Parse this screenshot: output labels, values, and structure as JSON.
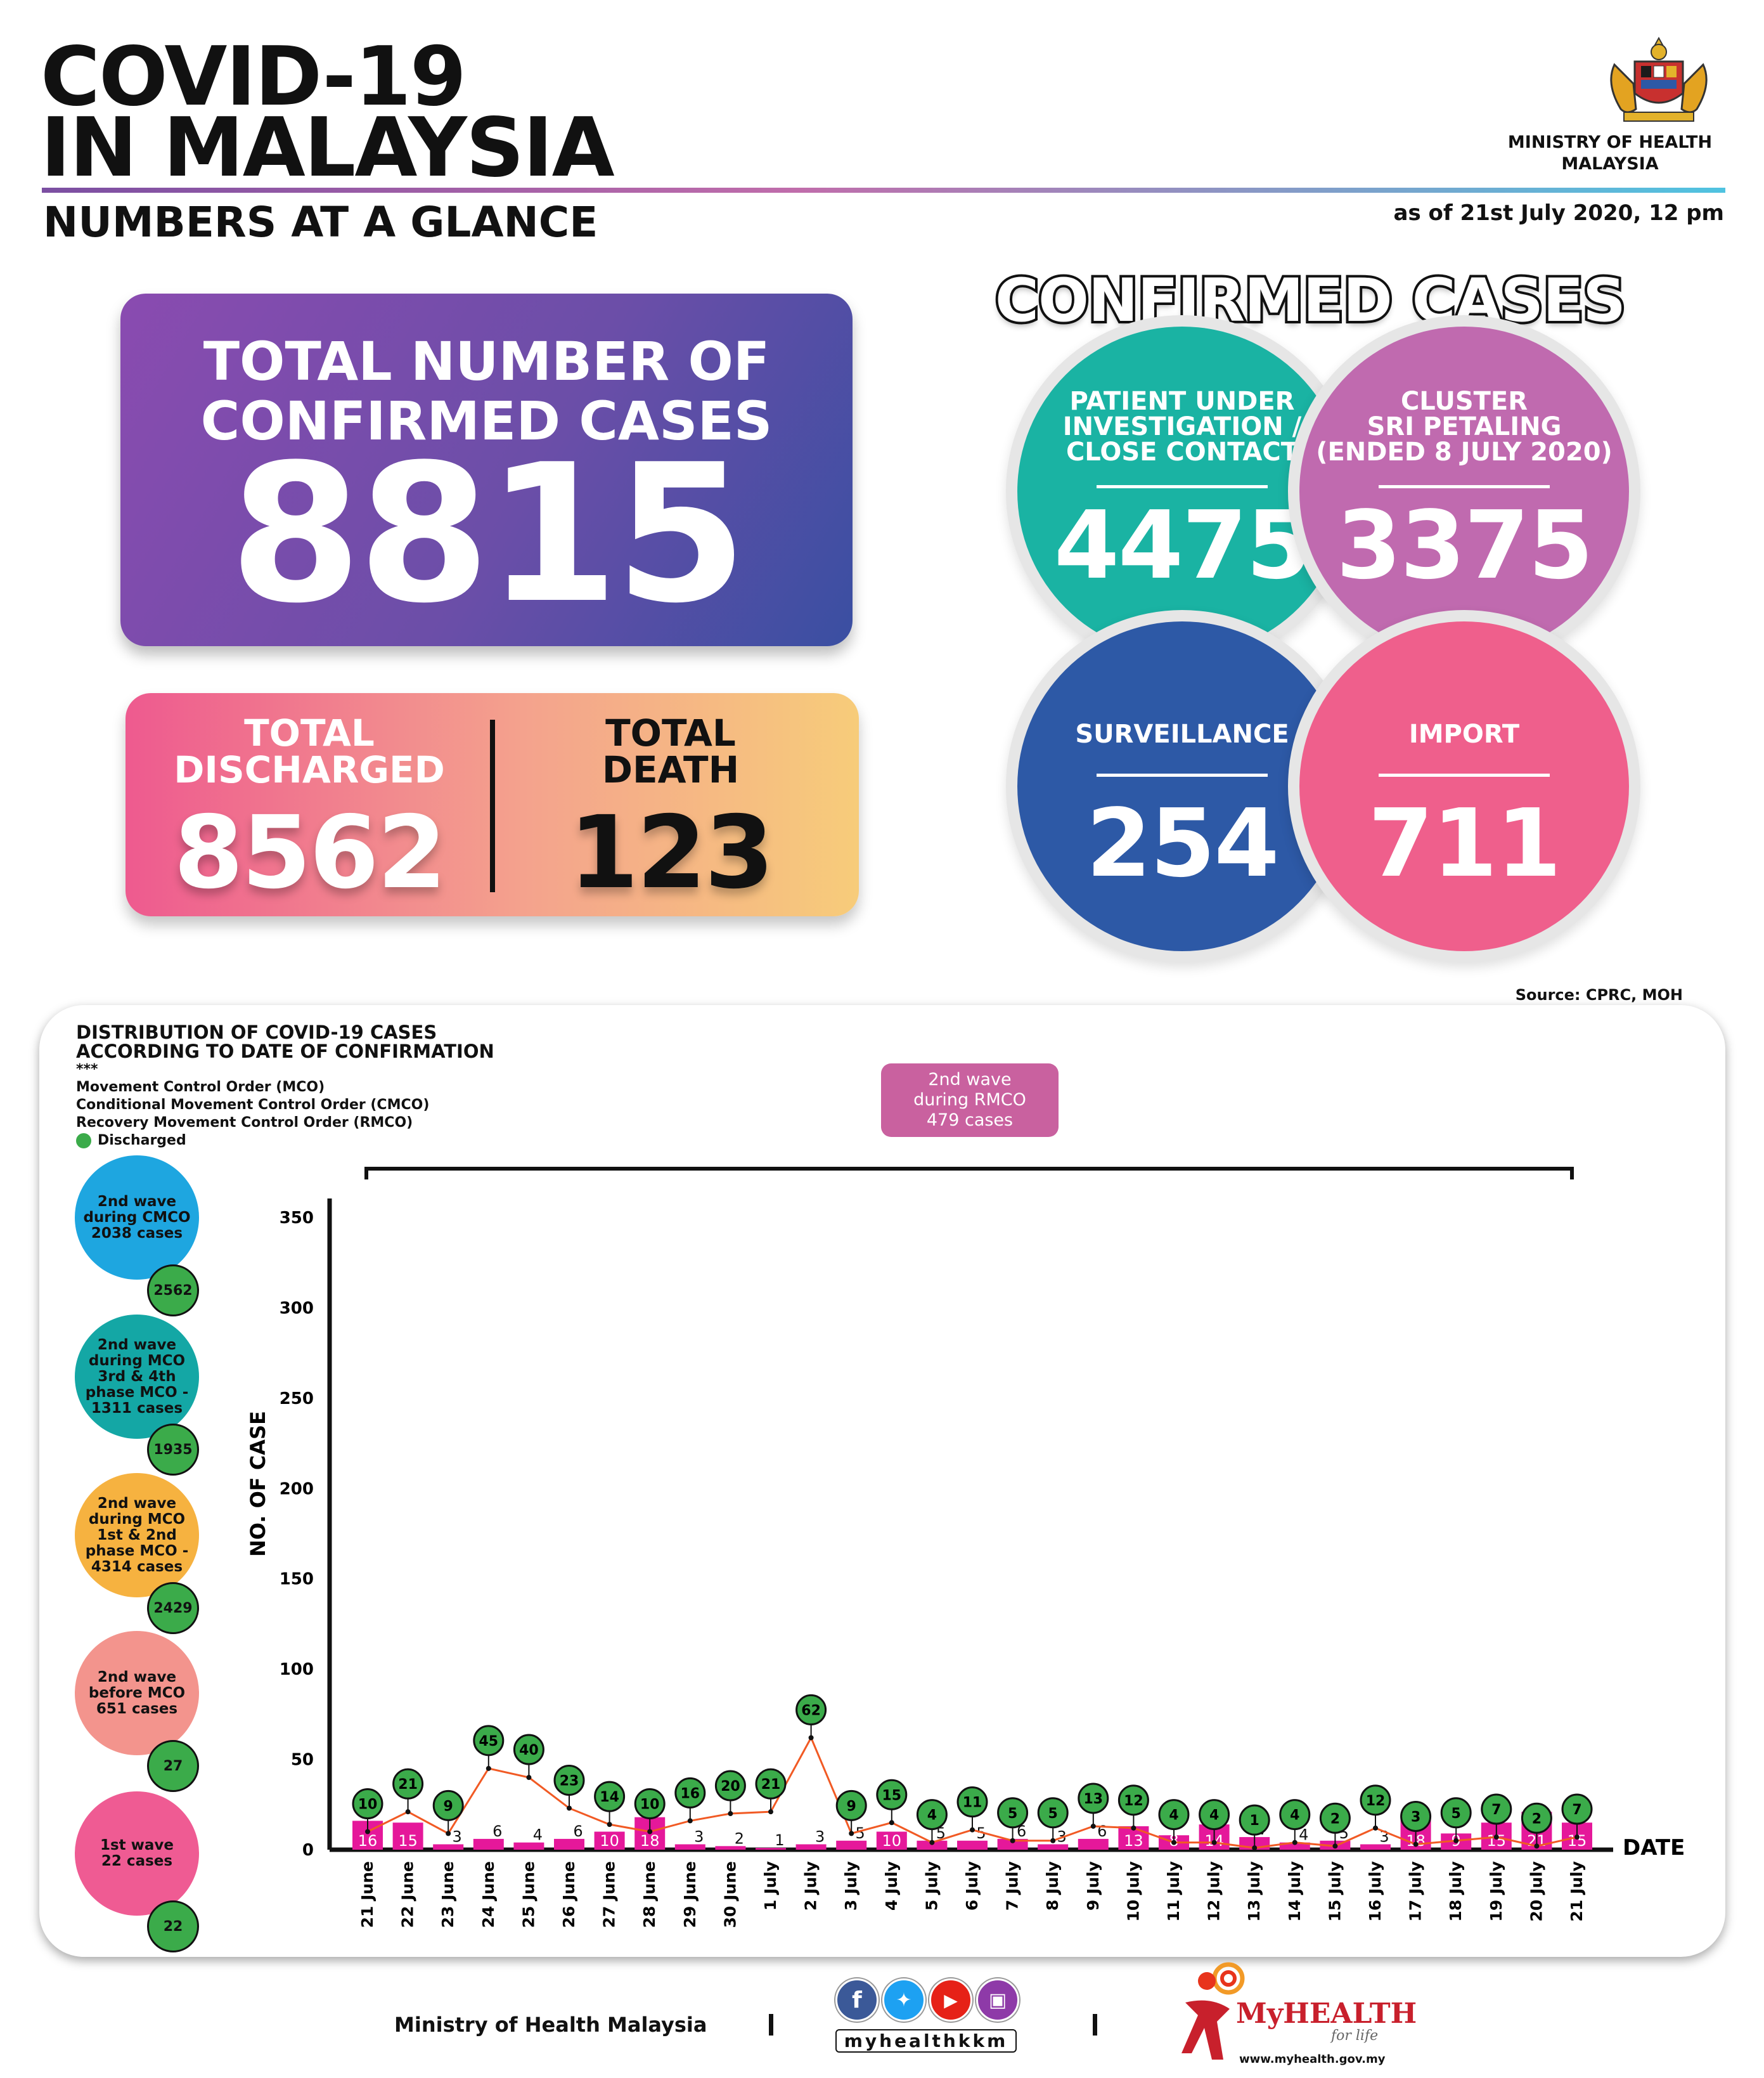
{
  "header": {
    "title_line1": "COVID-19",
    "title_line2": "IN MALAYSIA",
    "subtitle": "NUMBERS AT A GLANCE",
    "ministry_line1": "MINISTRY OF HEALTH",
    "ministry_line2": "MALAYSIA",
    "as_of": "as of 21st July 2020, 12 pm"
  },
  "totals": {
    "confirmed_label_1": "TOTAL NUMBER OF",
    "confirmed_label_2": "CONFIRMED CASES",
    "confirmed_value": "8815",
    "discharged_label_1": "TOTAL",
    "discharged_label_2": "DISCHARGED",
    "discharged_value": "8562",
    "death_label_1": "TOTAL",
    "death_label_2": "DEATH",
    "death_value": "123"
  },
  "confirmed_cases": {
    "title": "CONFIRMED CASES",
    "pui": {
      "l1": "PATIENT UNDER",
      "l2": "INVESTIGATION /",
      "l3": "CLOSE CONTACT",
      "value": "4475"
    },
    "cluster": {
      "l1": "CLUSTER",
      "l2": "SRI PETALING",
      "l3": "(ENDED 8 JULY 2020)",
      "value": "3375"
    },
    "surveillance": {
      "l1": "SURVEILLANCE",
      "value": "254"
    },
    "import": {
      "l1": "IMPORT",
      "value": "711"
    },
    "source": "Source: CPRC, MOH"
  },
  "colors": {
    "teal": "#1ab3a3",
    "mauve": "#c06aaf",
    "blue": "#2d59a6",
    "pink": "#ef5f8c",
    "bar": "#e5189a",
    "discharged": "#3bab4a",
    "line": "#f15a24"
  },
  "chart_meta": {
    "heading_1": "DISTRIBUTION OF COVID-19 CASES",
    "heading_2": "ACCORDING TO DATE OF CONFIRMATION",
    "stars": "***",
    "legend_1": "Movement Control Order (MCO)",
    "legend_2": "Conditional Movement Control Order (CMCO)",
    "legend_3": "Recovery Movement Control Order (RMCO)",
    "legend_4": "Discharged",
    "rmco_1": "2nd wave",
    "rmco_2": "during RMCO",
    "rmco_3": "479 cases",
    "waves": [
      {
        "l1": "2nd wave",
        "l2": "during CMCO",
        "l3": "2038 cases",
        "l4": "",
        "l5": "",
        "discharged": "2562",
        "color": "#1ea6e0"
      },
      {
        "l1": "2nd wave",
        "l2": "during MCO",
        "l3": "3rd & 4th",
        "l4": "phase MCO -",
        "l5": "1311 cases",
        "discharged": "1935",
        "color": "#14a7a5"
      },
      {
        "l1": "2nd wave",
        "l2": "during MCO",
        "l3": "1st & 2nd",
        "l4": "phase MCO -",
        "l5": "4314 cases",
        "discharged": "2429",
        "color": "#f6b240"
      },
      {
        "l1": "2nd wave",
        "l2": "before MCO",
        "l3": "651 cases",
        "l4": "",
        "l5": "",
        "discharged": "27",
        "color": "#f3948d"
      },
      {
        "l1": "1st wave",
        "l2": "22 cases",
        "l3": "",
        "l4": "",
        "l5": "",
        "discharged": "22",
        "color": "#ef5b93"
      }
    ]
  },
  "chart_data": {
    "type": "bar",
    "title": "DISTRIBUTION OF COVID-19 CASES ACCORDING TO DATE OF CONFIRMATION",
    "xlabel": "DATE",
    "ylabel": "NO. OF CASE",
    "ylim": [
      0,
      350
    ],
    "yticks": [
      0,
      50,
      100,
      150,
      200,
      250,
      300,
      350
    ],
    "categories": [
      "21 June",
      "22 June",
      "23 June",
      "24 June",
      "25 June",
      "26 June",
      "27 June",
      "28 June",
      "29 June",
      "30 June",
      "1 July",
      "2 July",
      "3 July",
      "4 July",
      "5 July",
      "6 July",
      "7 July",
      "8 July",
      "9 July",
      "10 July",
      "11 July",
      "12 July",
      "13 July",
      "14 July",
      "15 July",
      "16 July",
      "17 July",
      "18 July",
      "19 July",
      "20 July",
      "21 July"
    ],
    "series": [
      {
        "name": "",
        "kind": "bar",
        "values": [
          16,
          15,
          3,
          6,
          4,
          6,
          10,
          18,
          3,
          2,
          1,
          3,
          5,
          10,
          5,
          5,
          6,
          3,
          6,
          13,
          8,
          14,
          7,
          4,
          5,
          3,
          18,
          9,
          15,
          21,
          15
        ]
      },
      {
        "name": "Discharged",
        "kind": "line",
        "values": [
          10,
          21,
          9,
          45,
          40,
          23,
          14,
          10,
          16,
          20,
          21,
          62,
          9,
          15,
          4,
          11,
          5,
          5,
          13,
          12,
          4,
          4,
          1,
          4,
          2,
          12,
          3,
          5,
          7,
          2,
          7
        ]
      }
    ],
    "legend": "left",
    "grid": false
  },
  "footer": {
    "ministry": "Ministry of Health Malaysia",
    "handle": "myhealthkkm",
    "myhealth": "MyHEALTH",
    "for_life": "for life",
    "url": "www.myhealth.gov.my"
  }
}
